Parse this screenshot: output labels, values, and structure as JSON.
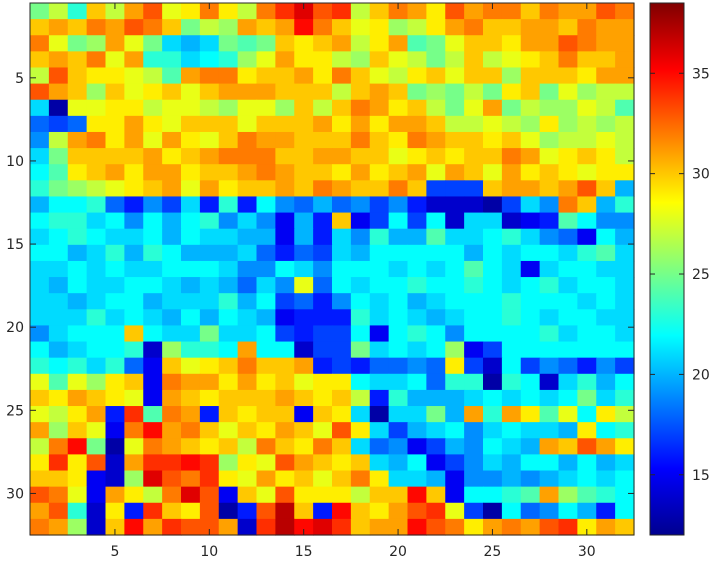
{
  "chart_data": {
    "type": "heatmap",
    "title": "",
    "xlabel": "",
    "ylabel": "",
    "xlim": [
      0.5,
      32.5
    ],
    "ylim": [
      0.5,
      32.5
    ],
    "y_reversed": true,
    "grid": false,
    "x_ticks": [
      5,
      10,
      15,
      20,
      25,
      30
    ],
    "y_ticks": [
      5,
      10,
      15,
      20,
      25,
      30
    ],
    "colormap": "jet",
    "colorbar": {
      "range": [
        12,
        38.5
      ],
      "ticks": [
        15,
        20,
        25,
        30,
        35
      ],
      "placement": "right"
    },
    "rows": [
      [
        25,
        27,
        23,
        30,
        27,
        31,
        33,
        28,
        29,
        32,
        29,
        27,
        32,
        34,
        36,
        33,
        34,
        27,
        30,
        32,
        31,
        29,
        33,
        31,
        32,
        32,
        30,
        32,
        31,
        31,
        33,
        32
      ],
      [
        30,
        31,
        30,
        32,
        31,
        33,
        32,
        30,
        25,
        27,
        26,
        31,
        30,
        31,
        35,
        32,
        30,
        28,
        29,
        26,
        27,
        29,
        31,
        32,
        30,
        30,
        31,
        31,
        30,
        32,
        31,
        31
      ],
      [
        32,
        28,
        25,
        26,
        31,
        28,
        25,
        21,
        20,
        21,
        25,
        24,
        25,
        30,
        29,
        30,
        31,
        27,
        29,
        31,
        24,
        25,
        28,
        30,
        30,
        29,
        31,
        31,
        33,
        32,
        31,
        31
      ],
      [
        30,
        31,
        30,
        32,
        28,
        31,
        23,
        23,
        21,
        22,
        23,
        26,
        28,
        31,
        29,
        29,
        27,
        26,
        30,
        28,
        27,
        25,
        27,
        30,
        27,
        28,
        29,
        30,
        32,
        30,
        30,
        31
      ],
      [
        27,
        33,
        30,
        29,
        29,
        28,
        27,
        24,
        31,
        32,
        32,
        29,
        30,
        30,
        31,
        29,
        32,
        30,
        28,
        27,
        29,
        30,
        28,
        30,
        30,
        26,
        30,
        30,
        30,
        29,
        31,
        31
      ],
      [
        33,
        31,
        30,
        26,
        30,
        28,
        29,
        30,
        28,
        30,
        31,
        31,
        31,
        30,
        30,
        30,
        27,
        30,
        31,
        30,
        25,
        26,
        25,
        27,
        25,
        29,
        30,
        25,
        28,
        26,
        27,
        27
      ],
      [
        21,
        13,
        28,
        28,
        29,
        29,
        27,
        28,
        28,
        27,
        26,
        28,
        28,
        26,
        30,
        27,
        30,
        32,
        31,
        29,
        30,
        27,
        25,
        28,
        31,
        25,
        27,
        26,
        26,
        28,
        27,
        24
      ],
      [
        18,
        17,
        18,
        29,
        29,
        31,
        29,
        28,
        30,
        30,
        30,
        28,
        30,
        30,
        30,
        31,
        29,
        31,
        29,
        31,
        31,
        30,
        27,
        27,
        28,
        27,
        26,
        29,
        26,
        27,
        26,
        27
      ],
      [
        19,
        27,
        31,
        32,
        29,
        31,
        28,
        31,
        29,
        28,
        30,
        32,
        31,
        31,
        30,
        30,
        30,
        32,
        30,
        29,
        32,
        31,
        30,
        30,
        29,
        30,
        28,
        26,
        27,
        27,
        28,
        27
      ],
      [
        21,
        25,
        30,
        30,
        30,
        30,
        31,
        29,
        30,
        31,
        32,
        32,
        32,
        30,
        30,
        31,
        31,
        30,
        30,
        28,
        29,
        30,
        29,
        30,
        30,
        32,
        31,
        28,
        29,
        30,
        29,
        27
      ],
      [
        22,
        24,
        29,
        30,
        31,
        29,
        31,
        31,
        29,
        30,
        30,
        31,
        32,
        31,
        30,
        30,
        29,
        31,
        29,
        30,
        31,
        28,
        31,
        30,
        28,
        31,
        29,
        30,
        29,
        28,
        29,
        29
      ],
      [
        23,
        25,
        26,
        27,
        28,
        29,
        30,
        31,
        28,
        31,
        29,
        30,
        30,
        31,
        30,
        32,
        31,
        30,
        30,
        32,
        30,
        17,
        17,
        17,
        30,
        31,
        31,
        30,
        31,
        33,
        30,
        20
      ],
      [
        20,
        22,
        22,
        23,
        18,
        16,
        19,
        17,
        21,
        16,
        23,
        16,
        22,
        19,
        18,
        20,
        18,
        19,
        17,
        19,
        16,
        14,
        14,
        14,
        13,
        17,
        21,
        19,
        32,
        30,
        20,
        23
      ],
      [
        22,
        23,
        23,
        21,
        22,
        19,
        22,
        20,
        22,
        23,
        19,
        21,
        19,
        15,
        20,
        16,
        30,
        15,
        17,
        22,
        17,
        22,
        14,
        21,
        21,
        14,
        15,
        16,
        24,
        22,
        19,
        19
      ],
      [
        21,
        22,
        23,
        22,
        21,
        21,
        22,
        20,
        22,
        21,
        21,
        20,
        20,
        15,
        20,
        16,
        21,
        19,
        23,
        20,
        20,
        24,
        21,
        21,
        22,
        23,
        21,
        19,
        18,
        15,
        22,
        20
      ],
      [
        22,
        22,
        20,
        21,
        23,
        20,
        23,
        22,
        20,
        20,
        20,
        21,
        18,
        16,
        18,
        17,
        21,
        20,
        22,
        22,
        22,
        22,
        22,
        20,
        22,
        21,
        22,
        22,
        21,
        23,
        24,
        21
      ],
      [
        21,
        21,
        22,
        21,
        22,
        21,
        21,
        22,
        22,
        22,
        21,
        19,
        19,
        22,
        21,
        19,
        22,
        22,
        22,
        21,
        22,
        21,
        22,
        24,
        22,
        21,
        15,
        21,
        22,
        22,
        21,
        21
      ],
      [
        21,
        20,
        22,
        21,
        21,
        22,
        22,
        21,
        20,
        21,
        20,
        18,
        21,
        19,
        28,
        18,
        22,
        21,
        22,
        22,
        23,
        22,
        22,
        23,
        22,
        21,
        22,
        23,
        21,
        22,
        22,
        21
      ],
      [
        21,
        21,
        20,
        21,
        22,
        22,
        20,
        21,
        21,
        21,
        23,
        20,
        22,
        17,
        18,
        16,
        19,
        22,
        21,
        22,
        20,
        21,
        22,
        22,
        22,
        23,
        22,
        22,
        22,
        21,
        22,
        21
      ],
      [
        21,
        21,
        21,
        23,
        21,
        22,
        21,
        20,
        22,
        20,
        22,
        21,
        20,
        15,
        16,
        16,
        16,
        23,
        21,
        22,
        21,
        20,
        21,
        22,
        22,
        23,
        22,
        21,
        22,
        22,
        21,
        21
      ],
      [
        19,
        21,
        22,
        22,
        22,
        30,
        22,
        21,
        21,
        25,
        21,
        21,
        22,
        17,
        16,
        17,
        17,
        22,
        15,
        22,
        23,
        22,
        19,
        22,
        22,
        22,
        22,
        23,
        21,
        22,
        22,
        21
      ],
      [
        22,
        20,
        21,
        22,
        22,
        23,
        14,
        26,
        23,
        23,
        22,
        31,
        22,
        22,
        14,
        17,
        17,
        25,
        21,
        22,
        21,
        22,
        26,
        15,
        17,
        22,
        22,
        22,
        22,
        22,
        22,
        22
      ],
      [
        23,
        22,
        23,
        21,
        23,
        18,
        15,
        30,
        28,
        29,
        30,
        32,
        30,
        30,
        31,
        16,
        17,
        16,
        18,
        18,
        19,
        18,
        29,
        17,
        14,
        22,
        17,
        19,
        18,
        16,
        19,
        17
      ],
      [
        28,
        24,
        28,
        26,
        29,
        30,
        15,
        32,
        31,
        31,
        29,
        31,
        29,
        30,
        28,
        29,
        29,
        22,
        21,
        21,
        22,
        18,
        23,
        23,
        13,
        23,
        22,
        14,
        21,
        23,
        20,
        22
      ],
      [
        30,
        29,
        31,
        30,
        29,
        28,
        15,
        31,
        30,
        29,
        30,
        30,
        30,
        31,
        30,
        29,
        30,
        27,
        16,
        23,
        20,
        20,
        20,
        21,
        22,
        21,
        22,
        21,
        22,
        25,
        21,
        23
      ],
      [
        28,
        27,
        29,
        31,
        16,
        34,
        24,
        32,
        31,
        16,
        30,
        29,
        30,
        30,
        15,
        30,
        29,
        21,
        13,
        21,
        21,
        25,
        20,
        31,
        23,
        31,
        29,
        24,
        28,
        22,
        29,
        27
      ],
      [
        31,
        26,
        30,
        28,
        15,
        32,
        35,
        31,
        32,
        30,
        28,
        30,
        29,
        31,
        30,
        28,
        33,
        29,
        21,
        17,
        20,
        21,
        22,
        19,
        21,
        22,
        21,
        21,
        20,
        29,
        22,
        23
      ],
      [
        27,
        32,
        35,
        25,
        13,
        28,
        32,
        31,
        30,
        29,
        30,
        27,
        32,
        30,
        29,
        32,
        30,
        21,
        18,
        19,
        15,
        17,
        20,
        19,
        22,
        21,
        20,
        31,
        30,
        33,
        31,
        29
      ],
      [
        29,
        34,
        29,
        33,
        14,
        31,
        34,
        34,
        35,
        34,
        26,
        29,
        28,
        33,
        31,
        30,
        29,
        30,
        21,
        20,
        22,
        15,
        17,
        19,
        21,
        20,
        22,
        22,
        20,
        22,
        20,
        21
      ],
      [
        30,
        30,
        29,
        15,
        14,
        26,
        36,
        33,
        32,
        34,
        29,
        28,
        31,
        29,
        30,
        28,
        30,
        32,
        29,
        21,
        21,
        20,
        15,
        19,
        19,
        20,
        19,
        20,
        21,
        22,
        21,
        22
      ],
      [
        33,
        32,
        28,
        15,
        31,
        29,
        27,
        32,
        36,
        33,
        15,
        30,
        28,
        33,
        29,
        29,
        29,
        27,
        30,
        30,
        35,
        30,
        15,
        22,
        22,
        23,
        24,
        31,
        26,
        24,
        23,
        22
      ],
      [
        31,
        33,
        23,
        14,
        29,
        16,
        34,
        30,
        29,
        33,
        13,
        16,
        33,
        37,
        30,
        16,
        35,
        30,
        29,
        31,
        33,
        34,
        28,
        17,
        13,
        22,
        18,
        19,
        22,
        20,
        16,
        22
      ],
      [
        32,
        31,
        26,
        14,
        30,
        35,
        31,
        34,
        33,
        33,
        31,
        14,
        34,
        37,
        35,
        36,
        34,
        30,
        31,
        31,
        35,
        33,
        32,
        29,
        31,
        32,
        31,
        33,
        34,
        29,
        31,
        30
      ]
    ]
  }
}
